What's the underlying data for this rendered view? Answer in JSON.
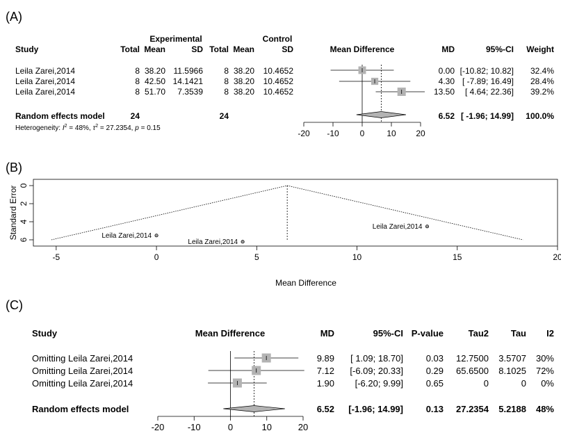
{
  "panel_a": {
    "panel_label": "(A)",
    "header": {
      "experimental": "Experimental",
      "control": "Control",
      "study": "Study",
      "total_e": "Total",
      "mean_e": "Mean",
      "sd_e": "SD",
      "total_c": "Total",
      "mean_c": "Mean",
      "sd_c": "SD",
      "md_plot": "Mean Difference",
      "md": "MD",
      "ci": "95%-CI",
      "weight": "Weight"
    },
    "rows": [
      {
        "study": "Leila Zarei,2014",
        "total_e": "8",
        "mean_e": "38.20",
        "sd_e": "11.5966",
        "total_c": "8",
        "mean_c": "38.20",
        "sd_c": "10.4652",
        "md_text": "0.00",
        "ci_text": "[-10.82; 10.82]",
        "weight": "32.4%"
      },
      {
        "study": "Leila Zarei,2014",
        "total_e": "8",
        "mean_e": "42.50",
        "sd_e": "14.1421",
        "total_c": "8",
        "mean_c": "38.20",
        "sd_c": "10.4652",
        "md_text": "4.30",
        "ci_text": "[ -7.89; 16.49]",
        "weight": "28.4%"
      },
      {
        "study": "Leila Zarei,2014",
        "total_e": "8",
        "mean_e": "51.70",
        "sd_e": "7.3539",
        "total_c": "8",
        "mean_c": "38.20",
        "sd_c": "10.4652",
        "md_text": "13.50",
        "ci_text": "[ 4.64; 22.36]",
        "weight": "39.2%"
      }
    ],
    "summary": {
      "label": "Random effects model",
      "total_e": "24",
      "total_c": "24",
      "md_text": "6.52",
      "ci_text": "[ -1.96; 14.99]",
      "weight": "100.0%"
    },
    "heterogeneity": {
      "prefix": "Heterogeneity: ",
      "i2_sym": "I",
      "i2_exp": "2",
      "i2_val": " = 48%, ",
      "tau_sym": "τ",
      "tau_exp": "2",
      "tau_val": " = 27.2354, ",
      "p_sym": "p",
      "p_val": " = 0.15"
    }
  },
  "panel_b": {
    "panel_label": "(B)",
    "ylabel": "Standard Error",
    "xlabel": "Mean Difference",
    "point_label": "Leila Zarei,2014"
  },
  "panel_c": {
    "panel_label": "(C)",
    "header": {
      "study": "Study",
      "md_plot": "Mean Difference",
      "md": "MD",
      "ci": "95%-CI",
      "pvalue": "P-value",
      "tau2": "Tau2",
      "tau": "Tau",
      "i2": "I2"
    },
    "rows": [
      {
        "study": "Omitting Leila Zarei,2014",
        "md_text": "9.89",
        "ci_text": "[ 1.09; 18.70]",
        "pvalue": "0.03",
        "tau2": "12.7500",
        "tau": "3.5707",
        "i2": "30%"
      },
      {
        "study": "Omitting Leila Zarei,2014",
        "md_text": "7.12",
        "ci_text": "[-6.09; 20.33]",
        "pvalue": "0.29",
        "tau2": "65.6500",
        "tau": "8.1025",
        "i2": "72%"
      },
      {
        "study": "Omitting Leila Zarei,2014",
        "md_text": "1.90",
        "ci_text": "[-6.20; 9.99]",
        "pvalue": "0.65",
        "tau2": "0",
        "tau": "0",
        "i2": "0%"
      }
    ],
    "summary": {
      "label": "Random effects model",
      "md_text": "6.52",
      "ci_text": "[-1.96; 14.99]",
      "pvalue": "0.13",
      "tau2": "27.2354",
      "tau": "5.2188",
      "i2": "48%"
    }
  },
  "chart_data": [
    {
      "type": "forest",
      "xlim": [
        -20,
        20
      ],
      "xticks": [
        -20,
        -10,
        0,
        10,
        20
      ],
      "studies": [
        {
          "md": 0.0,
          "lower": -10.82,
          "upper": 10.82,
          "weight": 32.4
        },
        {
          "md": 4.3,
          "lower": -7.89,
          "upper": 16.49,
          "weight": 28.4
        },
        {
          "md": 13.5,
          "lower": 4.64,
          "upper": 22.36,
          "weight": 39.2
        }
      ],
      "summary": {
        "md": 6.52,
        "lower": -1.96,
        "upper": 14.99
      }
    },
    {
      "type": "scatter",
      "subtype": "funnel",
      "xlim": [
        -6,
        20
      ],
      "xticks": [
        -5,
        0,
        5,
        10,
        15,
        20
      ],
      "ylim": [
        6,
        0
      ],
      "yticks": [
        0,
        2,
        4,
        6
      ],
      "center": 6.52,
      "points": [
        {
          "x": 0.0,
          "y": 5.52
        },
        {
          "x": 4.3,
          "y": 6.22
        },
        {
          "x": 13.5,
          "y": 4.52
        }
      ]
    },
    {
      "type": "forest",
      "subtype": "leave-one-out",
      "xlim": [
        -20,
        20
      ],
      "xticks": [
        -20,
        -10,
        0,
        10,
        20
      ],
      "studies": [
        {
          "md": 9.89,
          "lower": 1.09,
          "upper": 18.7
        },
        {
          "md": 7.12,
          "lower": -6.09,
          "upper": 20.33
        },
        {
          "md": 1.9,
          "lower": -6.2,
          "upper": 9.99
        }
      ],
      "summary": {
        "md": 6.52,
        "lower": -1.96,
        "upper": 14.99
      }
    }
  ]
}
